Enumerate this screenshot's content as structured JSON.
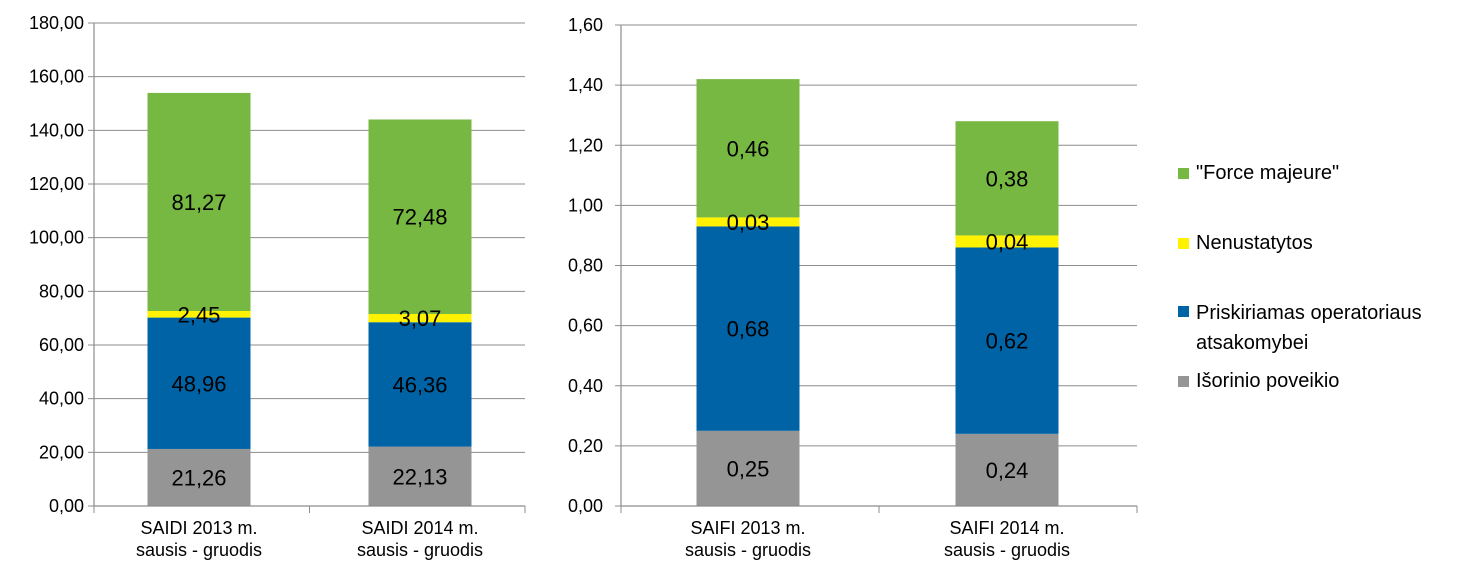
{
  "colors": {
    "external": "#959595",
    "operator": "#0063A6",
    "undetermined": "#FFF200",
    "force_majeure": "#77B843",
    "axis": "#8C8C8C",
    "grid": "#8C8C8C"
  },
  "legend": [
    {
      "label": "\"Force majeure\"",
      "color": "#77B843"
    },
    {
      "label": "Nenustatytos",
      "color": "#FFF200"
    },
    {
      "label": "Priskiriamas operatoriaus atsakomybei",
      "color": "#0063A6"
    },
    {
      "label": "Išorinio poveikio",
      "color": "#959595"
    }
  ],
  "chart_data": [
    {
      "type": "bar",
      "stacked": true,
      "categories": [
        [
          "SAIDI 2013 m.",
          "sausis - gruodis"
        ],
        [
          "SAIDI 2014 m.",
          "sausis - gruodis"
        ]
      ],
      "series": [
        {
          "name": "Išorinio poveikio",
          "values": [
            21.26,
            22.13
          ],
          "labels": [
            "21,26",
            "22,13"
          ],
          "color": "#959595"
        },
        {
          "name": "Priskiriamas operatoriaus atsakomybei",
          "values": [
            48.96,
            46.36
          ],
          "labels": [
            "48,96",
            "46,36"
          ],
          "color": "#0063A6"
        },
        {
          "name": "Nenustatytos",
          "values": [
            2.45,
            3.07
          ],
          "labels": [
            "2,45",
            "3,07"
          ],
          "color": "#FFF200"
        },
        {
          "name": "\"Force majeure\"",
          "values": [
            81.27,
            72.48
          ],
          "labels": [
            "81,27",
            "72,48"
          ],
          "color": "#77B843"
        }
      ],
      "ylim": [
        0,
        180
      ],
      "yticks": [
        0,
        20,
        40,
        60,
        80,
        100,
        120,
        140,
        160,
        180
      ],
      "ytick_labels": [
        "0,00",
        "20,00",
        "40,00",
        "60,00",
        "80,00",
        "100,00",
        "120,00",
        "140,00",
        "160,00",
        "180,00"
      ],
      "grid": true
    },
    {
      "type": "bar",
      "stacked": true,
      "categories": [
        [
          "SAIFI 2013 m.",
          "sausis - gruodis"
        ],
        [
          "SAIFI 2014 m.",
          "sausis - gruodis"
        ]
      ],
      "series": [
        {
          "name": "Išorinio poveikio",
          "values": [
            0.25,
            0.24
          ],
          "labels": [
            "0,25",
            "0,24"
          ],
          "color": "#959595"
        },
        {
          "name": "Priskiriamas operatoriaus atsakomybei",
          "values": [
            0.68,
            0.62
          ],
          "labels": [
            "0,68",
            "0,62"
          ],
          "color": "#0063A6"
        },
        {
          "name": "Nenustatytos",
          "values": [
            0.03,
            0.04
          ],
          "labels": [
            "0,03",
            "0,04"
          ],
          "color": "#FFF200"
        },
        {
          "name": "\"Force majeure\"",
          "values": [
            0.46,
            0.38
          ],
          "labels": [
            "0,46",
            "0,38"
          ],
          "color": "#77B843"
        }
      ],
      "ylim": [
        0,
        1.6
      ],
      "yticks": [
        0,
        0.2,
        0.4,
        0.6,
        0.8,
        1.0,
        1.2,
        1.4,
        1.6
      ],
      "ytick_labels": [
        "0,00",
        "0,20",
        "0,40",
        "0,60",
        "0,80",
        "1,00",
        "1,20",
        "1,40",
        "1,60"
      ],
      "grid": true
    }
  ]
}
